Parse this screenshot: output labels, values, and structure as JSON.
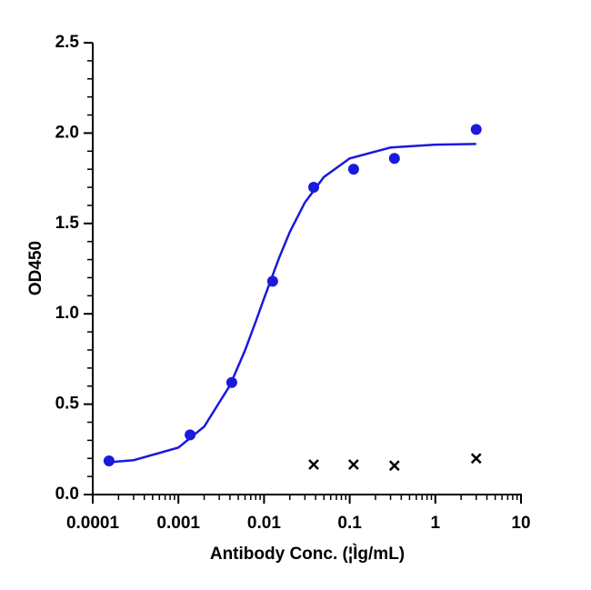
{
  "chart_data": {
    "type": "scatter",
    "xlabel": "Antibody Conc. (¦Ìg/mL)",
    "ylabel": "OD450",
    "xscale": "log",
    "xlim": [
      0.0001,
      10
    ],
    "xticks": [
      0.0001,
      0.001,
      0.01,
      0.1,
      1,
      10
    ],
    "x_minor_ticks": [
      0.0002,
      0.0003,
      0.0004,
      0.0005,
      0.0006,
      0.0007,
      0.0008,
      0.0009,
      0.002,
      0.003,
      0.004,
      0.005,
      0.006,
      0.007,
      0.008,
      0.009,
      0.02,
      0.03,
      0.04,
      0.05,
      0.06,
      0.07,
      0.08,
      0.09,
      0.2,
      0.3,
      0.4,
      0.5,
      0.6,
      0.7,
      0.8,
      0.9,
      2,
      3,
      4,
      5,
      6,
      7,
      8,
      9
    ],
    "ylim": [
      0,
      2.5
    ],
    "yticks": [
      {
        "value": 0,
        "label": "0.0"
      },
      0.5,
      {
        "value": 1,
        "label": "1.0"
      },
      1.5,
      {
        "value": 2,
        "label": "2.0"
      },
      2.5
    ],
    "y_minor_ticks": [
      0.1,
      0.2,
      0.3,
      0.4,
      0.6,
      0.7,
      0.8,
      0.9,
      1.1,
      1.2,
      1.3,
      1.4,
      1.6,
      1.7,
      1.8,
      1.9,
      2.1,
      2.2,
      2.3,
      2.4
    ],
    "points": {
      "color": "#1a1adc",
      "marker": "circle",
      "x": [
        0.000155,
        0.00137,
        0.0042,
        0.0126,
        0.038,
        0.111,
        0.333,
        3.0
      ],
      "values": [
        0.186,
        0.33,
        0.62,
        1.18,
        1.7,
        1.8,
        1.86,
        2.02
      ]
    },
    "curve": {
      "color": "#1a1adc",
      "x": [
        0.00016,
        0.0003,
        0.001,
        0.002,
        0.004,
        0.006,
        0.008,
        0.01,
        0.015,
        0.02,
        0.03,
        0.05,
        0.1,
        0.3,
        1,
        3
      ],
      "values": [
        0.179,
        0.19,
        0.26,
        0.376,
        0.604,
        0.798,
        0.957,
        1.085,
        1.31,
        1.453,
        1.616,
        1.757,
        1.86,
        1.92,
        1.936,
        1.94
      ]
    },
    "control": {
      "color": "#000000",
      "marker": "x",
      "x": [
        0.038,
        0.111,
        0.333,
        3.0
      ],
      "values": [
        0.166,
        0.166,
        0.16,
        0.2
      ]
    }
  }
}
